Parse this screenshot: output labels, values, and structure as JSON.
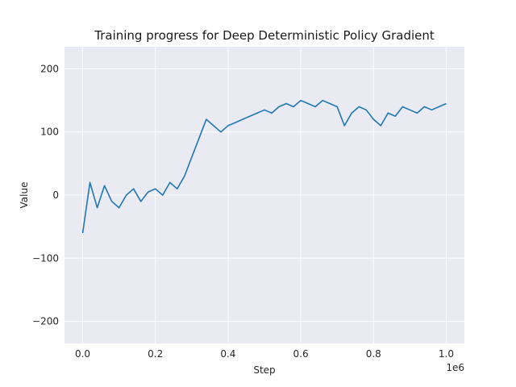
{
  "chart_data": {
    "type": "line",
    "title": "Training progress for Deep Deterministic Policy Gradient",
    "xlabel": "Step",
    "ylabel": "Value",
    "x_offset_label": "1e6",
    "xlim": [
      -50000,
      1050000
    ],
    "ylim": [
      -235,
      235
    ],
    "x_ticks": [
      0,
      200000,
      400000,
      600000,
      800000,
      1000000
    ],
    "x_tick_labels": [
      "0.0",
      "0.2",
      "0.4",
      "0.6",
      "0.8",
      "1.0"
    ],
    "y_ticks": [
      -200,
      -100,
      0,
      100,
      200
    ],
    "y_tick_labels": [
      "−200",
      "−100",
      "0",
      "100",
      "200"
    ],
    "grid": true,
    "background_color": "#eaeaf2",
    "series": [
      {
        "color": "#1f77b4",
        "x": [
          0,
          20000,
          40000,
          60000,
          80000,
          100000,
          120000,
          140000,
          160000,
          180000,
          200000,
          220000,
          240000,
          260000,
          280000,
          300000,
          320000,
          340000,
          360000,
          380000,
          400000,
          420000,
          440000,
          460000,
          480000,
          500000,
          520000,
          540000,
          560000,
          580000,
          600000,
          620000,
          640000,
          660000,
          680000,
          700000,
          720000,
          740000,
          760000,
          780000,
          800000,
          820000,
          840000,
          860000,
          880000,
          900000,
          920000,
          940000,
          960000,
          980000,
          1000000
        ],
        "y": [
          -60,
          20,
          -20,
          15,
          -10,
          -20,
          0,
          10,
          -10,
          5,
          10,
          0,
          20,
          10,
          30,
          60,
          90,
          120,
          110,
          100,
          110,
          115,
          120,
          125,
          130,
          135,
          130,
          140,
          145,
          140,
          150,
          145,
          140,
          150,
          145,
          140,
          110,
          130,
          140,
          135,
          120,
          110,
          130,
          125,
          140,
          135,
          130,
          140,
          135,
          140,
          145
        ]
      }
    ]
  }
}
